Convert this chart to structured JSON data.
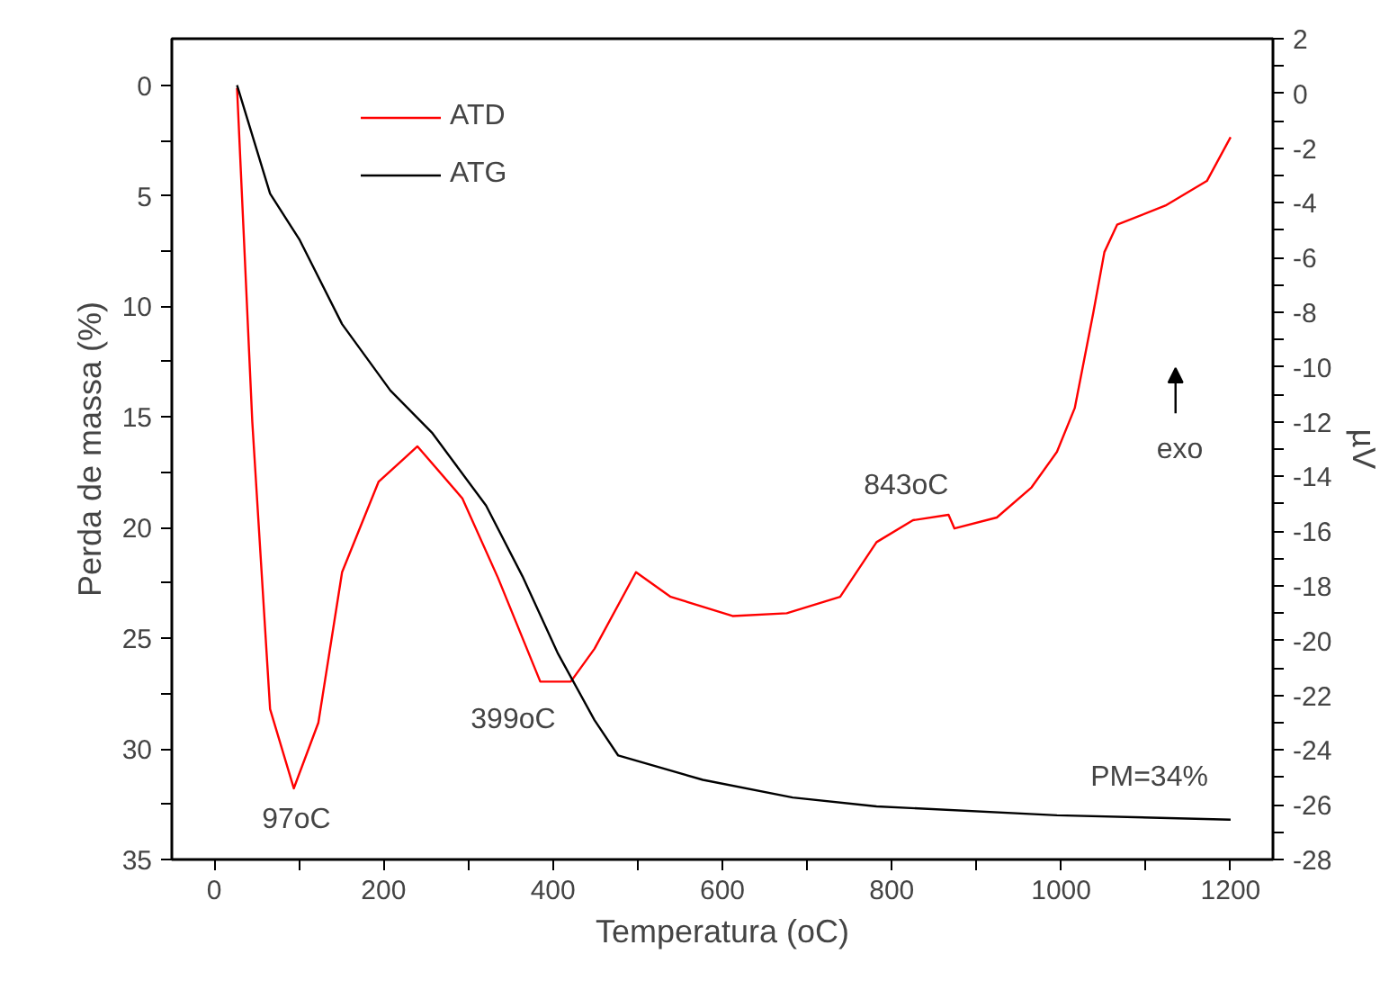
{
  "chart_data": {
    "type": "line",
    "xlabel": "Temperatura (oC)",
    "ylabel": "Perda de massa (%)",
    "y2label": "µV",
    "xlim": [
      -50,
      1250
    ],
    "xticks": [
      0,
      {
        "value": 100,
        "label": null
      },
      200,
      {
        "value": 300,
        "label": null
      },
      400,
      {
        "value": 500,
        "label": null
      },
      600,
      {
        "value": 700,
        "label": null
      },
      800,
      {
        "value": 900,
        "label": null
      },
      1000,
      {
        "value": 1100,
        "label": null
      },
      1200
    ],
    "ylim": [
      35,
      -2.1
    ],
    "yticks": [
      0,
      {
        "value": 2.5,
        "label": null
      },
      5,
      {
        "value": 7.5,
        "label": null
      },
      10,
      {
        "value": 12.5,
        "label": null
      },
      15,
      {
        "value": 17.5,
        "label": null
      },
      20,
      {
        "value": 22.5,
        "label": null
      },
      25,
      {
        "value": 27.5,
        "label": null
      },
      30,
      {
        "value": 32.5,
        "label": null
      },
      35
    ],
    "y2lim": [
      -28,
      2
    ],
    "y2ticks": [
      -28,
      {
        "value": -27,
        "label": null
      },
      -26,
      {
        "value": -25,
        "label": null
      },
      -24,
      {
        "value": -23,
        "label": null
      },
      -22,
      {
        "value": -21,
        "label": null
      },
      -20,
      {
        "value": -19,
        "label": null
      },
      -18,
      {
        "value": -17,
        "label": null
      },
      -16,
      {
        "value": -15,
        "label": null
      },
      -14,
      {
        "value": -13,
        "label": null
      },
      -12,
      {
        "value": -11,
        "label": null
      },
      -10,
      {
        "value": -9,
        "label": null
      },
      -8,
      {
        "value": -7,
        "label": null
      },
      -6,
      {
        "value": -5,
        "label": null
      },
      -4,
      {
        "value": -3,
        "label": null
      },
      -2,
      {
        "value": -1,
        "label": null
      },
      0,
      {
        "value": 1,
        "label": null
      },
      2
    ],
    "grid": false,
    "legend": "top left",
    "marker": "none",
    "line_style": "solid",
    "series": [
      {
        "name": "ATD",
        "color": "#ff0000",
        "axis": "y2",
        "x": [
          27,
          45,
          66,
          94,
          123,
          151,
          194,
          240,
          293,
          335,
          385,
          421,
          449,
          498,
          539,
          612,
          676,
          739,
          782,
          825,
          867,
          874,
          924,
          965,
          995,
          1016,
          1038,
          1051,
          1066,
          1123,
          1172,
          1200
        ],
        "values": [
          0.2,
          -12.0,
          -22.5,
          -25.4,
          -23.0,
          -17.5,
          -14.2,
          -12.9,
          -14.8,
          -17.7,
          -21.5,
          -21.5,
          -20.3,
          -17.5,
          -18.4,
          -19.1,
          -19.0,
          -18.4,
          -16.4,
          -15.6,
          -15.4,
          -15.9,
          -15.5,
          -14.4,
          -13.1,
          -11.5,
          -8.0,
          -5.8,
          -4.8,
          -4.1,
          -3.2,
          -1.6
        ]
      },
      {
        "name": "ATG",
        "color": "#000000",
        "x": [
          27,
          66,
          101,
          151,
          208,
          257,
          321,
          364,
          406,
          449,
          477,
          577,
          683,
          782,
          995,
          1200
        ],
        "values": [
          0,
          4.9,
          7.0,
          10.8,
          13.8,
          15.7,
          19.0,
          22.2,
          25.7,
          28.7,
          30.3,
          31.4,
          32.2,
          32.6,
          33.0,
          33.2
        ]
      }
    ],
    "annotations": [
      "97oC",
      "399oC",
      "843oC",
      "PM=34%",
      "exo"
    ]
  }
}
